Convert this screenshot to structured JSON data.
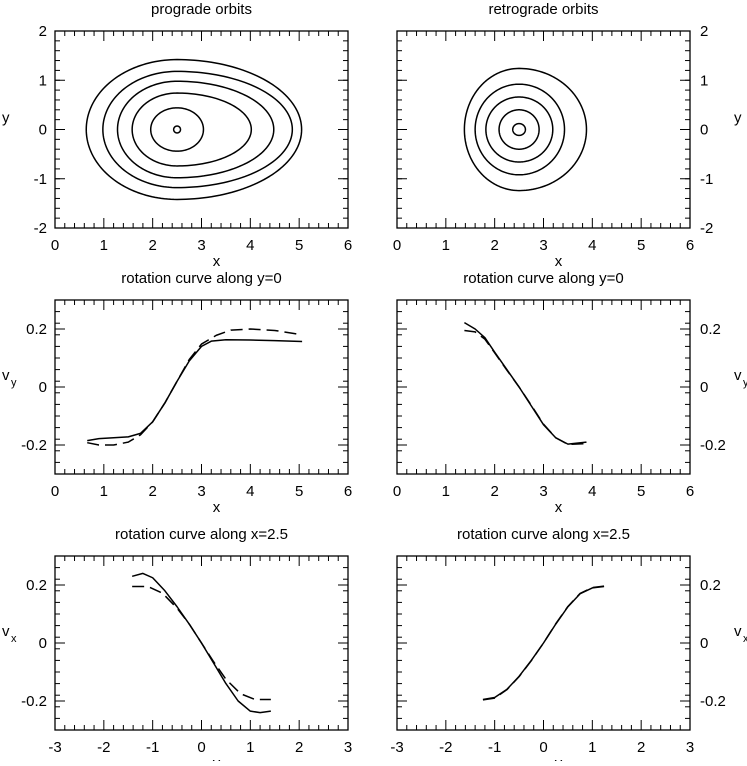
{
  "chart_data": [
    {
      "type": "line",
      "title": "prograde orbits",
      "xlabel": "x",
      "ylabel": "y",
      "xlim": [
        0,
        6
      ],
      "ylim": [
        -2,
        2
      ],
      "xticks": [
        "0",
        "1",
        "2",
        "3",
        "4",
        "5",
        "6"
      ],
      "yticks": [
        "-2",
        "-1",
        "0",
        "1",
        "2"
      ],
      "ylabel_side": "left",
      "series": [
        {
          "style": "solid",
          "kind": "orbit",
          "center": [
            2.5,
            0
          ],
          "values": {
            "x_min": 0.64,
            "x_max": 5.05,
            "y_half": 1.42
          }
        },
        {
          "style": "solid",
          "kind": "orbit",
          "center": [
            2.5,
            0
          ],
          "values": {
            "x_min": 0.98,
            "x_max": 4.86,
            "y_half": 1.18
          }
        },
        {
          "style": "solid",
          "kind": "orbit",
          "center": [
            2.5,
            0
          ],
          "values": {
            "x_min": 1.28,
            "x_max": 4.48,
            "y_half": 0.98
          }
        },
        {
          "style": "solid",
          "kind": "orbit",
          "center": [
            2.5,
            0
          ],
          "values": {
            "x_min": 1.58,
            "x_max": 4.02,
            "y_half": 0.74
          }
        },
        {
          "style": "solid",
          "kind": "orbit",
          "center": [
            2.5,
            0
          ],
          "values": {
            "x_min": 1.96,
            "x_max": 3.04,
            "y_half": 0.44
          }
        },
        {
          "style": "solid",
          "kind": "orbit",
          "center": [
            2.5,
            0
          ],
          "values": {
            "x_min": 2.43,
            "x_max": 2.57,
            "y_half": 0.07
          }
        }
      ]
    },
    {
      "type": "line",
      "title": "retrograde orbits",
      "xlabel": "x",
      "ylabel": "y",
      "xlim": [
        0,
        6
      ],
      "ylim": [
        -2,
        2
      ],
      "xticks": [
        "0",
        "1",
        "2",
        "3",
        "4",
        "5",
        "6"
      ],
      "yticks": [
        "-2",
        "-1",
        "0",
        "1",
        "2"
      ],
      "ylabel_side": "right",
      "series": [
        {
          "style": "solid",
          "kind": "orbit",
          "center": [
            2.5,
            0
          ],
          "values": {
            "x_min": 1.38,
            "x_max": 3.88,
            "y_half": 1.24
          }
        },
        {
          "style": "solid",
          "kind": "orbit",
          "center": [
            2.5,
            0
          ],
          "values": {
            "x_min": 1.6,
            "x_max": 3.43,
            "y_half": 0.92
          }
        },
        {
          "style": "solid",
          "kind": "orbit",
          "center": [
            2.5,
            0
          ],
          "values": {
            "x_min": 1.82,
            "x_max": 3.19,
            "y_half": 0.66
          }
        },
        {
          "style": "solid",
          "kind": "orbit",
          "center": [
            2.5,
            0
          ],
          "values": {
            "x_min": 2.09,
            "x_max": 2.91,
            "y_half": 0.4
          }
        },
        {
          "style": "solid",
          "kind": "orbit",
          "center": [
            2.5,
            0
          ],
          "values": {
            "x_min": 2.37,
            "x_max": 2.63,
            "y_half": 0.12
          }
        }
      ]
    },
    {
      "type": "line",
      "title": "rotation curve along y=0",
      "xlabel": "x",
      "ylabel": "v",
      "ylabel_sub": "y",
      "xlim": [
        0,
        6
      ],
      "ylim": [
        -0.3,
        0.3
      ],
      "xticks": [
        "0",
        "1",
        "2",
        "3",
        "4",
        "5",
        "6"
      ],
      "yticks": [
        "-0.2",
        "0",
        "0.2"
      ],
      "ylabel_side": "left",
      "series": [
        {
          "style": "solid",
          "x": [
            0.66,
            0.9,
            1.2,
            1.5,
            1.75,
            2.0,
            2.25,
            2.5,
            2.75,
            3.0,
            3.2,
            3.5,
            4.0,
            4.5,
            5.06
          ],
          "values": [
            -0.185,
            -0.178,
            -0.175,
            -0.172,
            -0.16,
            -0.12,
            -0.055,
            0.02,
            0.09,
            0.14,
            0.158,
            0.163,
            0.162,
            0.16,
            0.157
          ]
        },
        {
          "style": "dashed",
          "x": [
            0.66,
            0.9,
            1.2,
            1.5,
            1.75,
            2.0,
            2.25,
            2.5,
            2.75,
            3.0,
            3.3,
            3.6,
            4.0,
            4.5,
            5.06
          ],
          "values": [
            -0.192,
            -0.2,
            -0.2,
            -0.19,
            -0.165,
            -0.12,
            -0.055,
            0.02,
            0.095,
            0.148,
            0.178,
            0.196,
            0.2,
            0.195,
            0.18
          ]
        }
      ]
    },
    {
      "type": "line",
      "title": "rotation curve along y=0",
      "xlabel": "x",
      "ylabel": "v",
      "ylabel_sub": "y",
      "xlim": [
        0,
        6
      ],
      "ylim": [
        -0.3,
        0.3
      ],
      "xticks": [
        "0",
        "1",
        "2",
        "3",
        "4",
        "5",
        "6"
      ],
      "yticks": [
        "-0.2",
        "0",
        "0.2"
      ],
      "ylabel_side": "right",
      "series": [
        {
          "style": "solid",
          "x": [
            1.38,
            1.6,
            1.8,
            2.0,
            2.25,
            2.5,
            2.75,
            3.0,
            3.25,
            3.5,
            3.88
          ],
          "values": [
            0.222,
            0.2,
            0.17,
            0.12,
            0.06,
            0.0,
            -0.065,
            -0.13,
            -0.175,
            -0.197,
            -0.19
          ]
        },
        {
          "style": "dashed",
          "x": [
            1.38,
            1.6,
            1.8,
            2.0,
            2.25,
            2.5,
            2.75,
            3.0,
            3.25,
            3.5,
            3.88
          ],
          "values": [
            0.195,
            0.19,
            0.165,
            0.118,
            0.058,
            0.0,
            -0.063,
            -0.128,
            -0.175,
            -0.198,
            -0.195
          ]
        }
      ]
    },
    {
      "type": "line",
      "title": "rotation curve along x=2.5",
      "xlabel": "y",
      "ylabel": "v",
      "ylabel_sub": "x",
      "xlim": [
        -3,
        3
      ],
      "ylim": [
        -0.3,
        0.3
      ],
      "xticks": [
        "-3",
        "-2",
        "-1",
        "0",
        "1",
        "2",
        "3"
      ],
      "yticks": [
        "-0.2",
        "0",
        "0.2"
      ],
      "ylabel_side": "left",
      "series": [
        {
          "style": "solid",
          "x": [
            -1.42,
            -1.2,
            -1.0,
            -0.75,
            -0.5,
            -0.25,
            0.0,
            0.25,
            0.5,
            0.75,
            1.0,
            1.2,
            1.42
          ],
          "values": [
            0.23,
            0.24,
            0.225,
            0.18,
            0.125,
            0.065,
            0.0,
            -0.07,
            -0.14,
            -0.2,
            -0.235,
            -0.24,
            -0.235
          ]
        },
        {
          "style": "dashed",
          "x": [
            -1.42,
            -1.1,
            -0.8,
            -0.5,
            -0.25,
            0.0,
            0.25,
            0.5,
            0.8,
            1.1,
            1.42
          ],
          "values": [
            0.195,
            0.195,
            0.172,
            0.12,
            0.065,
            0.0,
            -0.065,
            -0.125,
            -0.175,
            -0.195,
            -0.195
          ]
        }
      ]
    },
    {
      "type": "line",
      "title": "rotation curve along x=2.5",
      "xlabel": "y",
      "ylabel": "v",
      "ylabel_sub": "x",
      "xlim": [
        -3,
        3
      ],
      "ylim": [
        -0.3,
        0.3
      ],
      "xticks": [
        "-3",
        "-2",
        "-1",
        "0",
        "1",
        "2",
        "3"
      ],
      "yticks": [
        "-0.2",
        "0",
        "0.2"
      ],
      "ylabel_side": "right",
      "series": [
        {
          "style": "solid",
          "x": [
            -1.24,
            -1.0,
            -0.75,
            -0.5,
            -0.25,
            0.0,
            0.25,
            0.5,
            0.75,
            1.0,
            1.24
          ],
          "values": [
            -0.195,
            -0.188,
            -0.16,
            -0.115,
            -0.06,
            0.0,
            0.065,
            0.125,
            0.17,
            0.19,
            0.195
          ]
        },
        {
          "style": "dashed",
          "x": [
            -1.24,
            -1.0,
            -0.75,
            -0.5,
            -0.25,
            0.0,
            0.25,
            0.5,
            0.75,
            1.0,
            1.24
          ],
          "values": [
            -0.196,
            -0.19,
            -0.161,
            -0.116,
            -0.061,
            0.0,
            0.066,
            0.126,
            0.171,
            0.191,
            0.196
          ]
        }
      ]
    }
  ]
}
